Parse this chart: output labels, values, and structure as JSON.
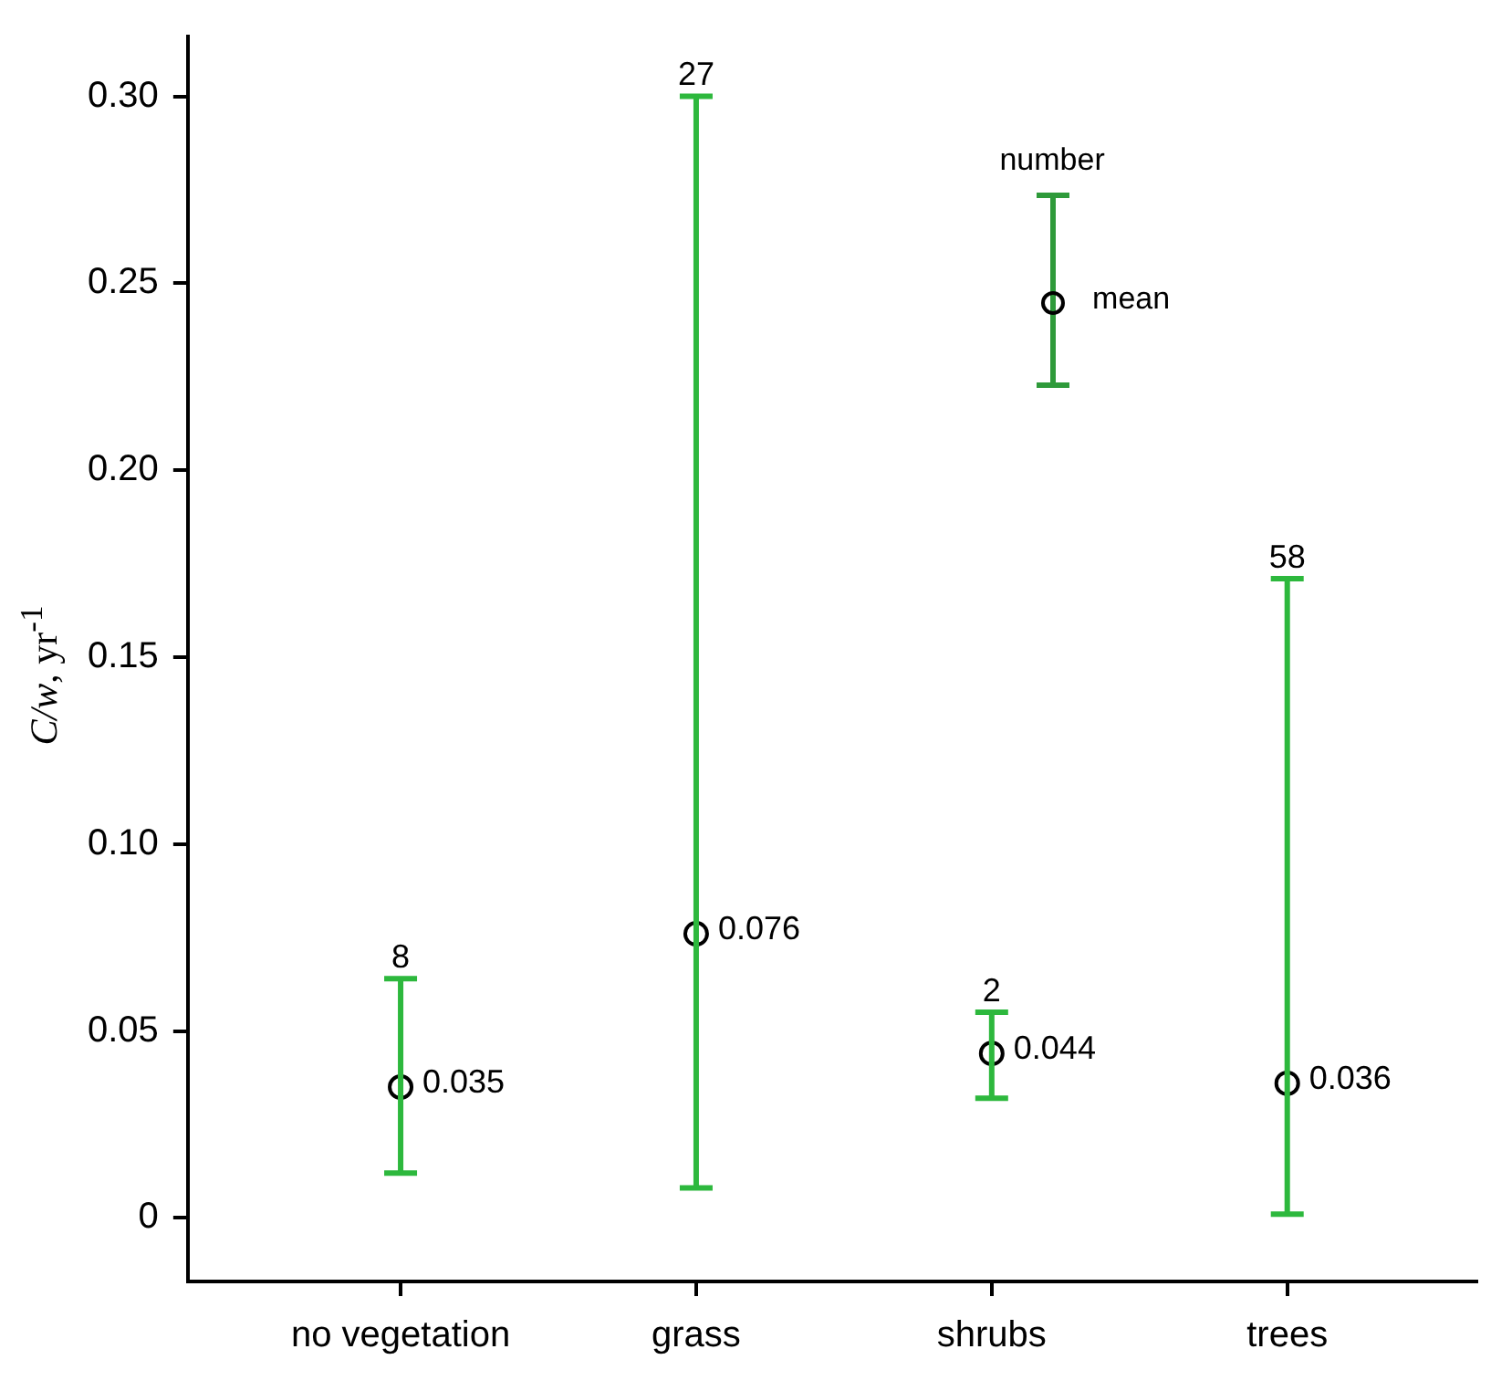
{
  "chart_data": {
    "type": "scatter",
    "ylabel": "C/w, yr$^{-1}$",
    "categories": [
      "no vegetation",
      "grass",
      "shrubs",
      "trees"
    ],
    "values": [
      0.035,
      0.076,
      0.044,
      0.036
    ],
    "errors": [
      [
        0.012,
        0.064
      ],
      [
        0.008,
        0.3
      ],
      [
        0.032,
        0.055
      ],
      [
        0.001,
        0.171
      ]
    ],
    "color": "#000000",
    "marker": "circle",
    "data_labels": true,
    "ylim": [
      -0.017,
      0.316
    ],
    "yticks": [
      0,
      0.05,
      {
        "value": 0.1,
        "label": "0.10"
      },
      0.15,
      {
        "value": 0.2,
        "label": "0.20"
      },
      0.25,
      {
        "value": 0.3,
        "label": "0.30"
      }
    ],
    "annotations": [
      {
        "text": "8",
        "x": "no vegetation",
        "y": 0.064
      },
      {
        "text": "27",
        "x": "grass",
        "y": 0.3
      },
      {
        "text": "2",
        "x": "shrubs",
        "y": 0.055
      },
      {
        "text": "58",
        "x": "trees",
        "y": 0.171
      },
      "number",
      "mean"
    ]
  }
}
